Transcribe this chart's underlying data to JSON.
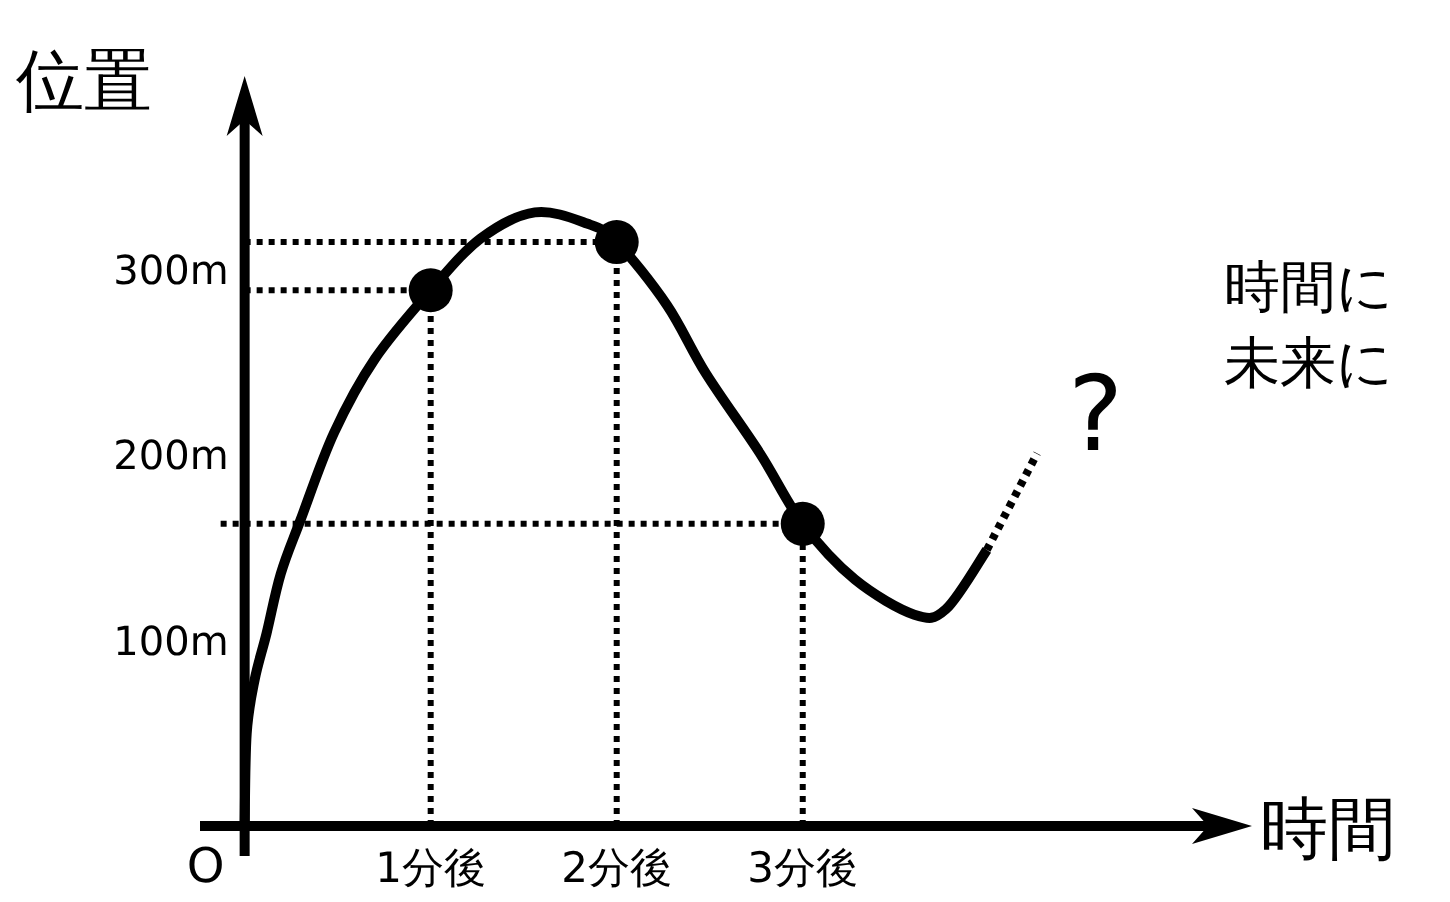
{
  "chart_data": {
    "type": "line",
    "xlabel": "時間",
    "ylabel": "位置",
    "xlim": [
      -0.24,
      5.2
    ],
    "ylim": [
      0,
      383
    ],
    "xticks": [
      {
        "value": 1,
        "label": "1分後"
      },
      {
        "value": 2,
        "label": "2分後"
      },
      {
        "value": 3,
        "label": "3分後"
      }
    ],
    "yticks": [
      {
        "value": 100,
        "label": "100m"
      },
      {
        "value": 200,
        "label": "200m"
      },
      {
        "value": 300,
        "label": "300m"
      }
    ],
    "series": [
      {
        "color": "#000000",
        "line_style": "solid",
        "marker": "none",
        "x": [
          0,
          0.011,
          0.054,
          0.118,
          0.194,
          0.3,
          0.48,
          0.7,
          1,
          1.27,
          1.56,
          1.84,
          2,
          2.27,
          2.48,
          2.77,
          3,
          3.28,
          3.6,
          3.77,
          3.99
        ],
        "values": [
          0,
          50,
          79,
          104,
          136,
          165,
          212,
          252,
          289,
          317,
          331,
          325,
          315,
          281,
          244,
          201,
          163,
          133,
          114,
          117,
          149
        ]
      },
      {
        "color": "#000000",
        "line_style": "dotted",
        "marker": "none",
        "x": [
          3.99,
          4.26
        ],
        "values": [
          149,
          201
        ]
      },
      {
        "type": "scatter",
        "color": "#000000",
        "marker": "circle",
        "x": [
          1,
          2,
          3
        ],
        "values": [
          289,
          315,
          163
        ]
      }
    ],
    "ref_lines": [
      {
        "axis": "y",
        "value": 289,
        "label": null,
        "line_style": "dotted"
      },
      {
        "axis": "y",
        "value": 315,
        "label": null,
        "line_style": "dotted"
      },
      {
        "axis": "y",
        "value": 163,
        "label": null,
        "line_style": "dotted"
      },
      {
        "axis": "x",
        "value": 1,
        "label": null,
        "line_style": "dotted"
      },
      {
        "axis": "x",
        "value": 2,
        "label": null,
        "line_style": "dotted"
      },
      {
        "axis": "x",
        "value": 3,
        "label": null,
        "line_style": "dotted"
      }
    ],
    "annotations": [
      {
        "text": "O",
        "x": 0,
        "y": 0
      },
      "?",
      "時間に",
      "未来に"
    ]
  }
}
